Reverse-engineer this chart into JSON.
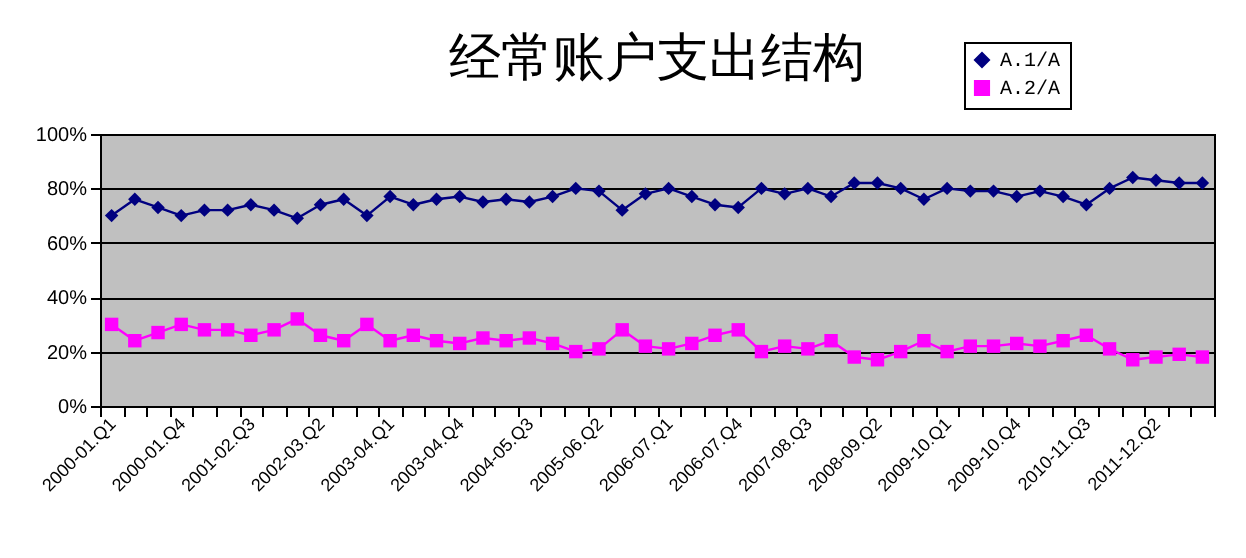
{
  "chart_data": {
    "type": "line",
    "title": "经常账户支出结构",
    "categories": [
      "2000-01.Q1",
      null,
      null,
      "2000-01.Q4",
      null,
      null,
      "2001-02.Q3",
      null,
      null,
      "2002-03.Q2",
      null,
      null,
      "2003-04.Q1",
      null,
      null,
      "2003-04.Q4",
      null,
      null,
      "2004-05.Q3",
      null,
      null,
      "2005-06.Q2",
      null,
      null,
      "2006-07.Q1",
      null,
      null,
      "2006-07.Q4",
      null,
      null,
      "2007-08.Q3",
      null,
      null,
      "2008-09.Q2",
      null,
      null,
      "2009-10.Q1",
      null,
      null,
      "2009-10.Q4",
      null,
      null,
      "2010-11.Q3",
      null,
      null,
      "2011-12.Q2",
      null,
      null
    ],
    "series": [
      {
        "name": "A.1/A",
        "color": "#000080",
        "marker": "diamond",
        "values": [
          70,
          76,
          73,
          70,
          72,
          72,
          74,
          72,
          69,
          74,
          76,
          70,
          77,
          74,
          76,
          77,
          75,
          76,
          75,
          77,
          80,
          79,
          72,
          78,
          80,
          77,
          74,
          73,
          80,
          78,
          80,
          77,
          82,
          82,
          80,
          76,
          80,
          79,
          79,
          77,
          79,
          77,
          74,
          80,
          84,
          83,
          82,
          82
        ]
      },
      {
        "name": "A.2/A",
        "color": "#ff00ff",
        "marker": "square",
        "values": [
          30,
          24,
          27,
          30,
          28,
          28,
          26,
          28,
          32,
          26,
          24,
          30,
          24,
          26,
          24,
          23,
          25,
          24,
          25,
          23,
          20,
          21,
          28,
          22,
          21,
          23,
          26,
          28,
          20,
          22,
          21,
          24,
          18,
          17,
          20,
          24,
          20,
          22,
          22,
          23,
          22,
          24,
          26,
          21,
          17,
          18,
          19,
          18
        ]
      }
    ],
    "ylim": [
      0,
      100
    ],
    "yticks": [
      {
        "value": 0,
        "label": "0%"
      },
      {
        "value": 20,
        "label": "20%"
      },
      {
        "value": 40,
        "label": "40%"
      },
      {
        "value": 60,
        "label": "60%"
      },
      {
        "value": 80,
        "label": "80%"
      },
      {
        "value": 100,
        "label": "100%"
      }
    ],
    "grid": "y",
    "legend": "top right",
    "line_style": "solid"
  }
}
